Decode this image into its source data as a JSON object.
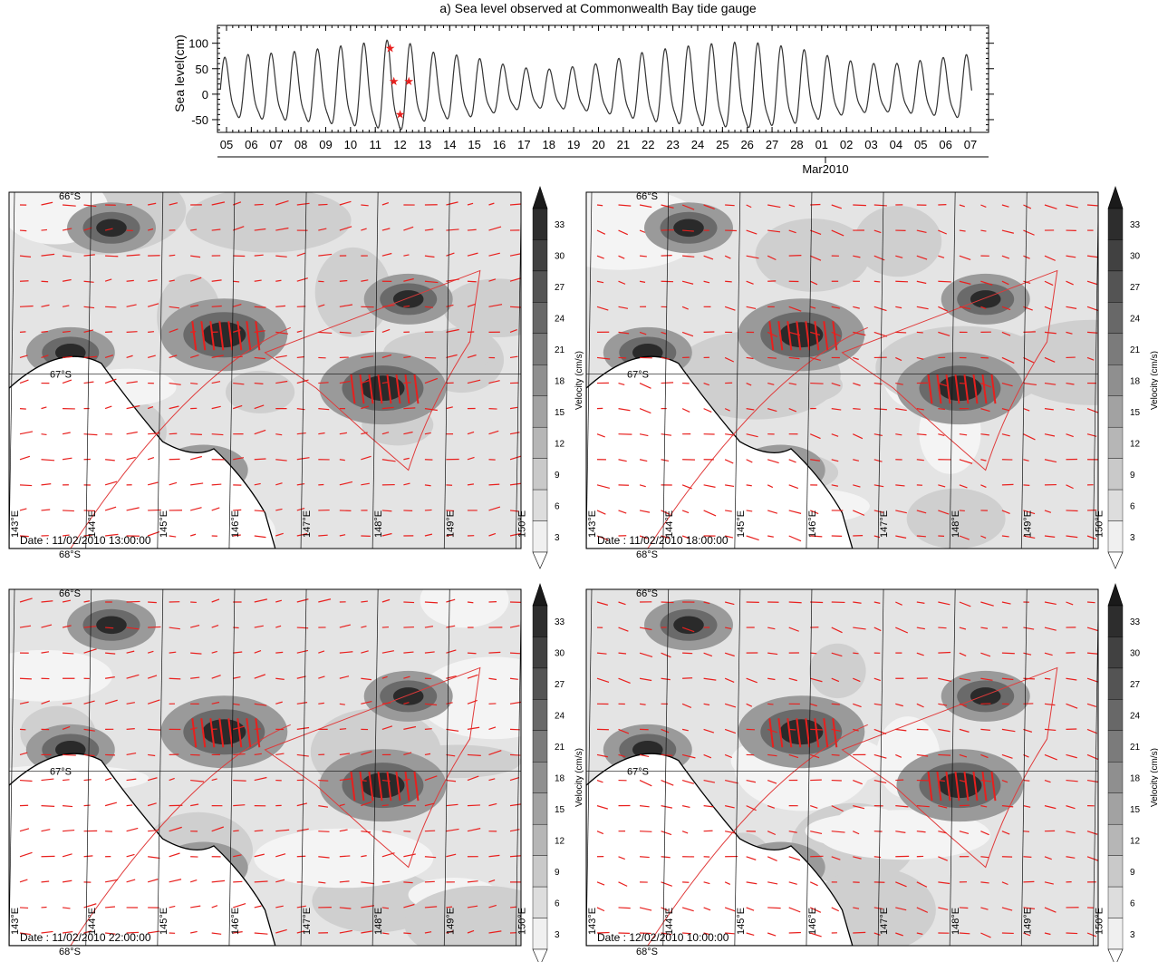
{
  "chart_data": {
    "type": "line",
    "title": "a)  Sea level observed at Commonwealth Bay tide gauge",
    "ylabel": "Sea level(cm)",
    "ylim": [
      -75,
      135
    ],
    "yticks": [
      "100",
      "50",
      "0",
      "-50"
    ],
    "xticks": [
      "05",
      "06",
      "07",
      "08",
      "09",
      "10",
      "11",
      "12",
      "13",
      "14",
      "15",
      "16",
      "17",
      "18",
      "19",
      "20",
      "21",
      "22",
      "23",
      "24",
      "25",
      "26",
      "27",
      "28",
      "01",
      "02",
      "03",
      "04",
      "05",
      "06",
      "07"
    ],
    "xsublabel": "Mar2010",
    "series": [
      {
        "color": "#333333",
        "mean": 5,
        "amplitude_cm": [
          55,
          60,
          62,
          65,
          70,
          75,
          80,
          85,
          65,
          60,
          55,
          45,
          38,
          36,
          40,
          45,
          55,
          65,
          70,
          75,
          78,
          80,
          75,
          70,
          60,
          50,
          45,
          45,
          50,
          55,
          60
        ]
      }
    ],
    "markers": [
      {
        "date": "11.6",
        "value": 90,
        "shape": "star"
      },
      {
        "date": "11.75",
        "value": 25,
        "shape": "star"
      },
      {
        "date": "12.0",
        "value": -40,
        "shape": "star"
      },
      {
        "date": "12.35",
        "value": 25,
        "shape": "star"
      }
    ],
    "marker_color": "#e8201e",
    "maps": [
      {
        "date": "Date : 11/02/2010 13:00:00"
      },
      {
        "date": "Date : 11/02/2010 18:00:00"
      },
      {
        "date": "Date : 11/02/2010 22:00:00"
      },
      {
        "date": "Date : 12/02/2010 10:00:00"
      }
    ],
    "map_lat_labels": [
      "66°S",
      "67°S",
      "68°S"
    ],
    "map_lon_labels": [
      "143°E",
      "144°E",
      "145°E",
      "146°E",
      "147°E",
      "148°E",
      "149°E",
      "150°E"
    ],
    "colorbar": {
      "label": "Velocity (cm/s)",
      "ticks": [
        "33",
        "30",
        "27",
        "24",
        "21",
        "18",
        "15",
        "12",
        "9",
        "6",
        "3"
      ]
    },
    "arrow_color": "#e8201e",
    "coast_color": "#000000",
    "ice_tongue_color": "#e03a3a"
  }
}
